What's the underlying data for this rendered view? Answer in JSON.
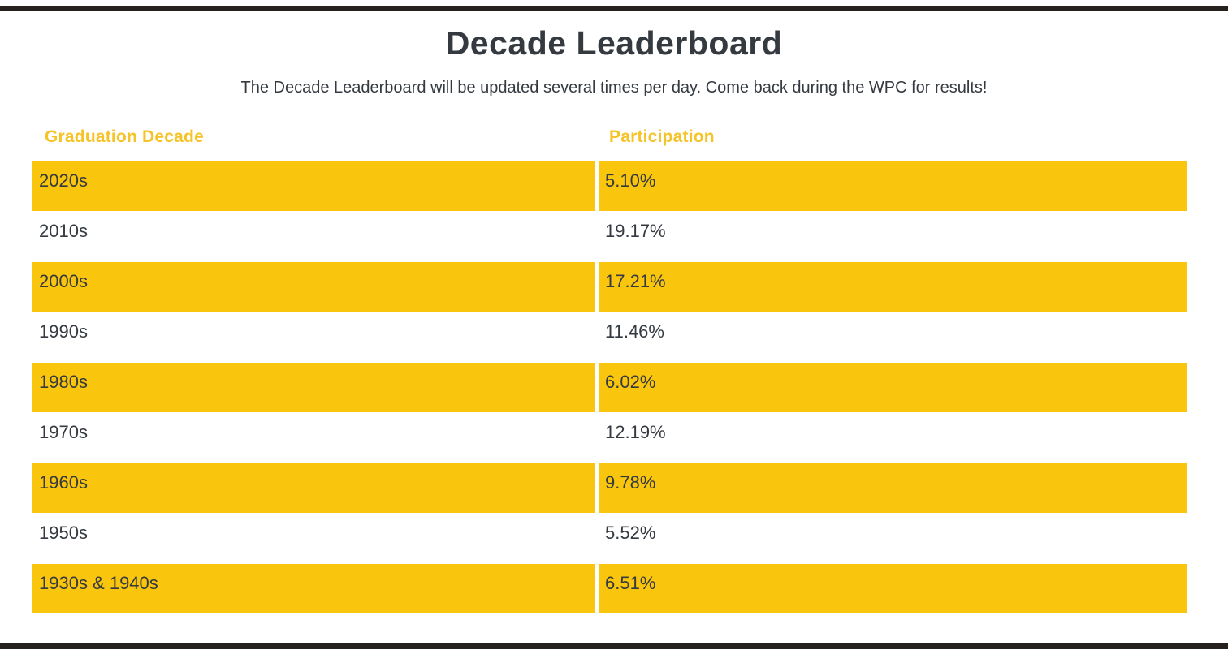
{
  "page": {
    "title": "Decade Leaderboard",
    "subtitle": "The Decade Leaderboard will be updated several times per day. Come back during the WPC for results!"
  },
  "table": {
    "columns": [
      {
        "label": "Graduation Decade"
      },
      {
        "label": "Participation"
      }
    ],
    "rows": [
      {
        "decade": "2020s",
        "participation": "5.10%",
        "highlighted": true
      },
      {
        "decade": "2010s",
        "participation": "19.17%",
        "highlighted": false
      },
      {
        "decade": "2000s",
        "participation": "17.21%",
        "highlighted": true
      },
      {
        "decade": "1990s",
        "participation": "11.46%",
        "highlighted": false
      },
      {
        "decade": "1980s",
        "participation": "6.02%",
        "highlighted": true
      },
      {
        "decade": "1970s",
        "participation": "12.19%",
        "highlighted": false
      },
      {
        "decade": "1960s",
        "participation": "9.78%",
        "highlighted": true
      },
      {
        "decade": "1950s",
        "participation": "5.52%",
        "highlighted": false
      },
      {
        "decade": "1930s & 1940s",
        "participation": "6.51%",
        "highlighted": true
      }
    ]
  },
  "colors": {
    "accent_gold_row": "#FAC50D",
    "accent_gold_header_text": "#F6C327",
    "border_bar_black": "#26211F",
    "text_dark": "#343A40",
    "background": "#FFFFFF"
  }
}
